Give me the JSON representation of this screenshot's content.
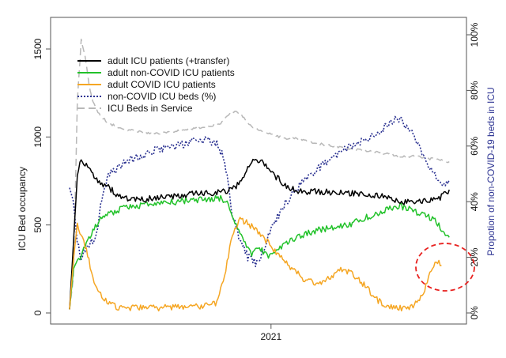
{
  "chart_data": {
    "type": "line",
    "title": "",
    "xlabel": "",
    "ylabel": "ICU Bed occupancy",
    "ylabel_right": "Propotion of non-COVID-19 beds in ICU",
    "xlim": [
      0,
      100
    ],
    "ylim": [
      0,
      1600
    ],
    "ylim_right": [
      0,
      100
    ],
    "x_tick_labels": [
      {
        "x": 52,
        "label": "2021"
      }
    ],
    "y_ticks": [
      0,
      500,
      1000,
      1500
    ],
    "y_tick_labels": [
      "0",
      "500",
      "1000",
      "1500"
    ],
    "y2_ticks": [
      0,
      20,
      40,
      60,
      80,
      100
    ],
    "y2_tick_labels": [
      "0%",
      "20%",
      "40%",
      "60%",
      "80%",
      "100%"
    ],
    "legend_position": "top-left",
    "annotation": {
      "type": "dashed-ellipse",
      "color": "#e8211f",
      "x": 89,
      "y": 250
    },
    "series": [
      {
        "name": "adult ICU patients (+transfer)",
        "color": "#000000",
        "dash": "solid",
        "axis": "left",
        "x": [
          0,
          1,
          2,
          3,
          4,
          5,
          6,
          8,
          10,
          12,
          15,
          18,
          21,
          24,
          27,
          30,
          33,
          36,
          39,
          42,
          44,
          46,
          48,
          50,
          52,
          54,
          56,
          58,
          60,
          63,
          66,
          69,
          72,
          75,
          78,
          81,
          84,
          87,
          90,
          93,
          96,
          98
        ],
        "values": [
          20,
          400,
          780,
          870,
          840,
          820,
          790,
          740,
          720,
          670,
          650,
          640,
          650,
          660,
          660,
          670,
          680,
          680,
          690,
          700,
          740,
          830,
          870,
          860,
          800,
          760,
          720,
          700,
          690,
          690,
          690,
          680,
          680,
          680,
          670,
          660,
          640,
          630,
          630,
          640,
          660,
          700
        ]
      },
      {
        "name": "adult non-COVID ICU patients",
        "color": "#22c22a",
        "dash": "solid",
        "axis": "left",
        "x": [
          0,
          1,
          2,
          3,
          4,
          5,
          6,
          8,
          10,
          12,
          15,
          18,
          21,
          24,
          27,
          30,
          33,
          36,
          39,
          41,
          43,
          45,
          47,
          49,
          51,
          53,
          55,
          58,
          61,
          64,
          67,
          70,
          73,
          76,
          79,
          82,
          85,
          88,
          91,
          94,
          96,
          98
        ],
        "values": [
          20,
          250,
          300,
          330,
          390,
          420,
          470,
          540,
          560,
          580,
          600,
          610,
          620,
          630,
          630,
          640,
          640,
          650,
          650,
          620,
          500,
          400,
          330,
          370,
          320,
          350,
          380,
          420,
          450,
          470,
          480,
          490,
          510,
          540,
          560,
          590,
          610,
          590,
          560,
          530,
          480,
          430
        ]
      },
      {
        "name": "adult COVID ICU patients",
        "color": "#f5a623",
        "dash": "solid",
        "axis": "left",
        "x": [
          0,
          1,
          2,
          3,
          4,
          5,
          6,
          8,
          10,
          12,
          14,
          17,
          20,
          23,
          26,
          29,
          32,
          35,
          38,
          40,
          42,
          44,
          46,
          48,
          50,
          52,
          55,
          58,
          61,
          64,
          67,
          70,
          73,
          76,
          79,
          82,
          85,
          88,
          90,
          92,
          93,
          95,
          96
        ],
        "values": [
          20,
          300,
          510,
          440,
          380,
          300,
          200,
          100,
          60,
          35,
          30,
          30,
          30,
          30,
          30,
          35,
          40,
          40,
          60,
          200,
          450,
          530,
          510,
          470,
          430,
          380,
          300,
          240,
          180,
          170,
          200,
          250,
          220,
          160,
          80,
          40,
          25,
          30,
          70,
          150,
          230,
          290,
          270
        ]
      },
      {
        "name": "non-COVID ICU beds (%)",
        "color": "#2c3392",
        "dash": "dotted",
        "axis": "right",
        "x": [
          0,
          1,
          2,
          3,
          4,
          5,
          6,
          7,
          8,
          10,
          12,
          15,
          18,
          21,
          24,
          27,
          30,
          33,
          36,
          38,
          40,
          42,
          44,
          46,
          48,
          50,
          52,
          55,
          58,
          61,
          64,
          67,
          70,
          73,
          76,
          79,
          82,
          85,
          88,
          90,
          92,
          94,
          96,
          98
        ],
        "values": [
          45,
          40,
          25,
          20,
          22,
          24,
          26,
          28,
          38,
          50,
          52,
          55,
          56,
          58,
          59,
          60,
          61,
          62,
          62,
          61,
          55,
          36,
          26,
          20,
          18,
          22,
          30,
          38,
          44,
          48,
          52,
          55,
          58,
          60,
          62,
          64,
          68,
          70,
          66,
          60,
          55,
          50,
          45,
          48
        ]
      },
      {
        "name": "ICU Beds in Service",
        "color": "#b8b8b8",
        "dash": "dashed",
        "axis": "left",
        "x": [
          0,
          1,
          2,
          3,
          4,
          5,
          6,
          7,
          8,
          10,
          12,
          15,
          18,
          21,
          24,
          27,
          30,
          33,
          36,
          39,
          41,
          43,
          45,
          47,
          50,
          53,
          56,
          59,
          62,
          65,
          68,
          71,
          74,
          77,
          80,
          83,
          86,
          89,
          92,
          95,
          98
        ],
        "values": [
          20,
          200,
          1200,
          1550,
          1460,
          1300,
          1200,
          1150,
          1120,
          1080,
          1060,
          1040,
          1030,
          1020,
          1020,
          1030,
          1040,
          1050,
          1060,
          1080,
          1130,
          1150,
          1110,
          1060,
          1030,
          1010,
          990,
          990,
          970,
          960,
          950,
          940,
          930,
          920,
          910,
          900,
          890,
          890,
          880,
          870,
          860
        ]
      }
    ]
  }
}
